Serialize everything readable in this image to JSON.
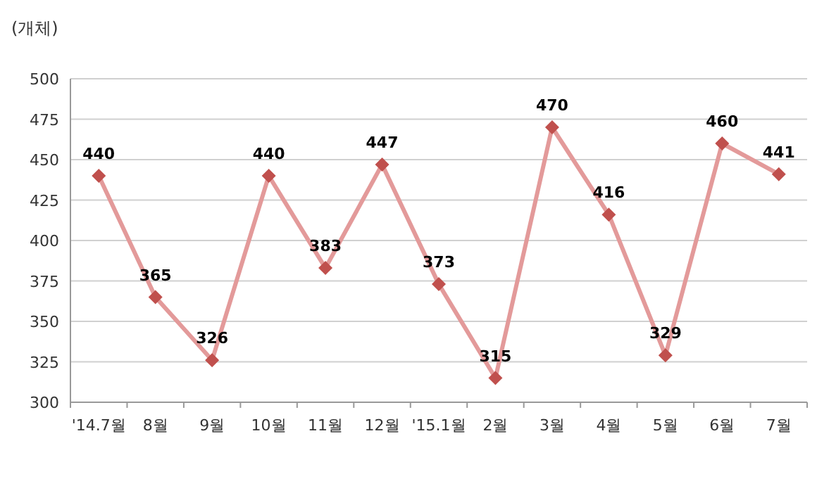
{
  "chart_data": {
    "type": "line",
    "ylabel": "(개체)",
    "categories": [
      "'14.7월",
      "8월",
      "9월",
      "10월",
      "11월",
      "12월",
      "'15.1월",
      "2월",
      "3월",
      "4월",
      "5월",
      "6월",
      "7월"
    ],
    "series": [
      {
        "color": "#e39a9a",
        "values": [
          440,
          365,
          326,
          440,
          383,
          447,
          373,
          315,
          470,
          416,
          329,
          460,
          441
        ],
        "colors": [
          "#c0504d",
          "#c0504d",
          "#c0504d",
          "#c0504d",
          "#c0504d",
          "#c0504d",
          "#c0504d",
          "#c0504d",
          "#c0504d",
          "#c0504d",
          "#c0504d",
          "#c0504d",
          "#c0504d"
        ]
      }
    ],
    "ylim": [
      300,
      500
    ],
    "yticks": [
      300,
      325,
      350,
      375,
      400,
      425,
      450,
      475,
      500
    ],
    "grid": "y",
    "marker": "diamond",
    "line_style": "solid",
    "data_labels": true
  }
}
